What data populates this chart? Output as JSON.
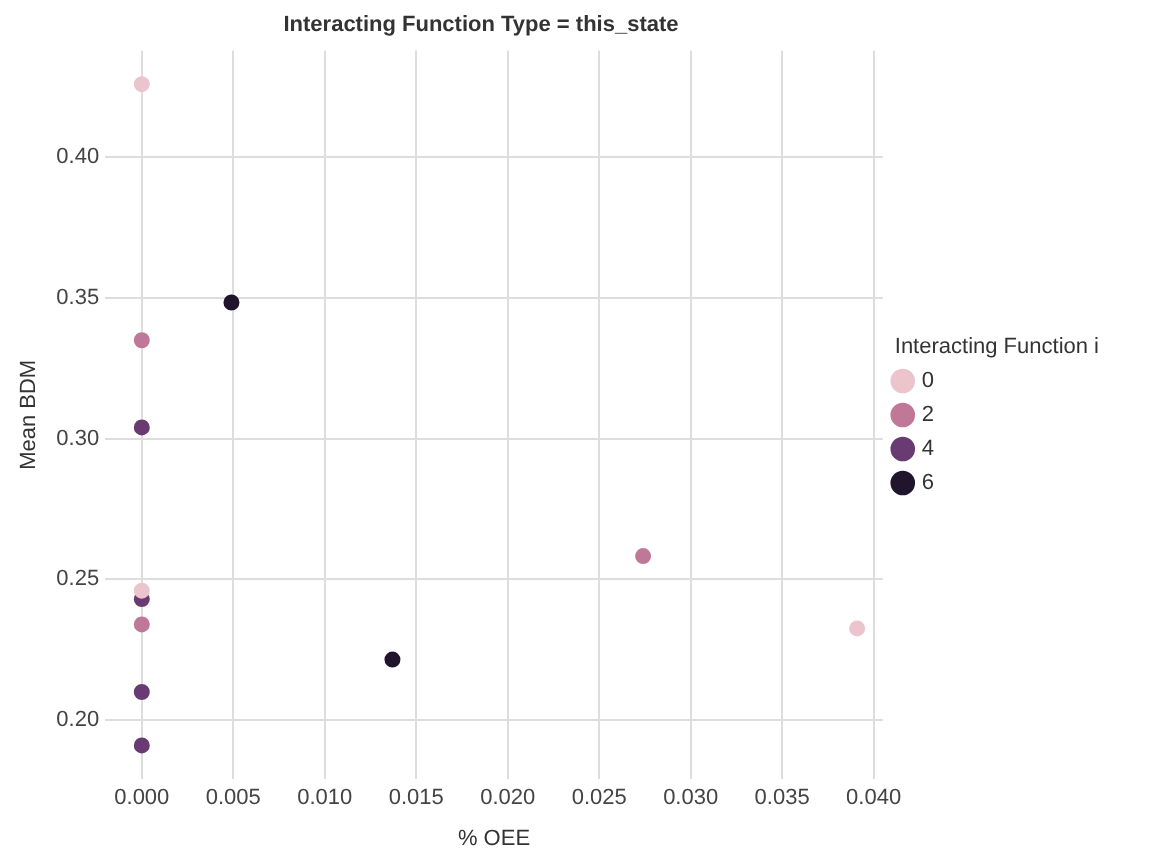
{
  "chart_data": {
    "type": "scatter",
    "title": "Interacting Function Type = this_state",
    "xlabel": "% OEE",
    "ylabel": "Mean BDM",
    "legend_title": "Interacting Function i",
    "series": [
      {
        "name": "0",
        "color": "#ecc4cc",
        "x": [
          0,
          0,
          0.0391
        ],
        "values": [
          0.426,
          0.246,
          0.2326
        ]
      },
      {
        "name": "2",
        "color": "#c07898",
        "x": [
          0,
          0,
          0.0274
        ],
        "values": [
          0.335,
          0.234,
          0.2583
        ]
      },
      {
        "name": "4",
        "color": "#6a3b72",
        "x": [
          0,
          0,
          0,
          0
        ],
        "values": [
          0.304,
          0.243,
          0.21,
          0.191
        ]
      },
      {
        "name": "6",
        "color": "#21152e",
        "x": [
          0.0049,
          0.0137
        ],
        "values": [
          0.3484,
          0.2215
        ]
      }
    ],
    "xlim": [
      -0.002,
      0.0405
    ],
    "xticks": [
      {
        "value": 0,
        "label": "0.000"
      },
      0.005,
      {
        "value": 0.01,
        "label": "0.010"
      },
      0.015,
      {
        "value": 0.02,
        "label": "0.020"
      },
      0.025,
      {
        "value": 0.03,
        "label": "0.030"
      },
      0.035,
      {
        "value": 0.04,
        "label": "0.040"
      }
    ],
    "ylim": [
      0.179,
      0.438
    ],
    "yticks": [
      {
        "value": 0.2,
        "label": "0.20"
      },
      0.25,
      {
        "value": 0.3,
        "label": "0.30"
      },
      0.35,
      {
        "value": 0.4,
        "label": "0.40"
      }
    ],
    "grid": true,
    "legend": "right",
    "marker": "circle"
  }
}
